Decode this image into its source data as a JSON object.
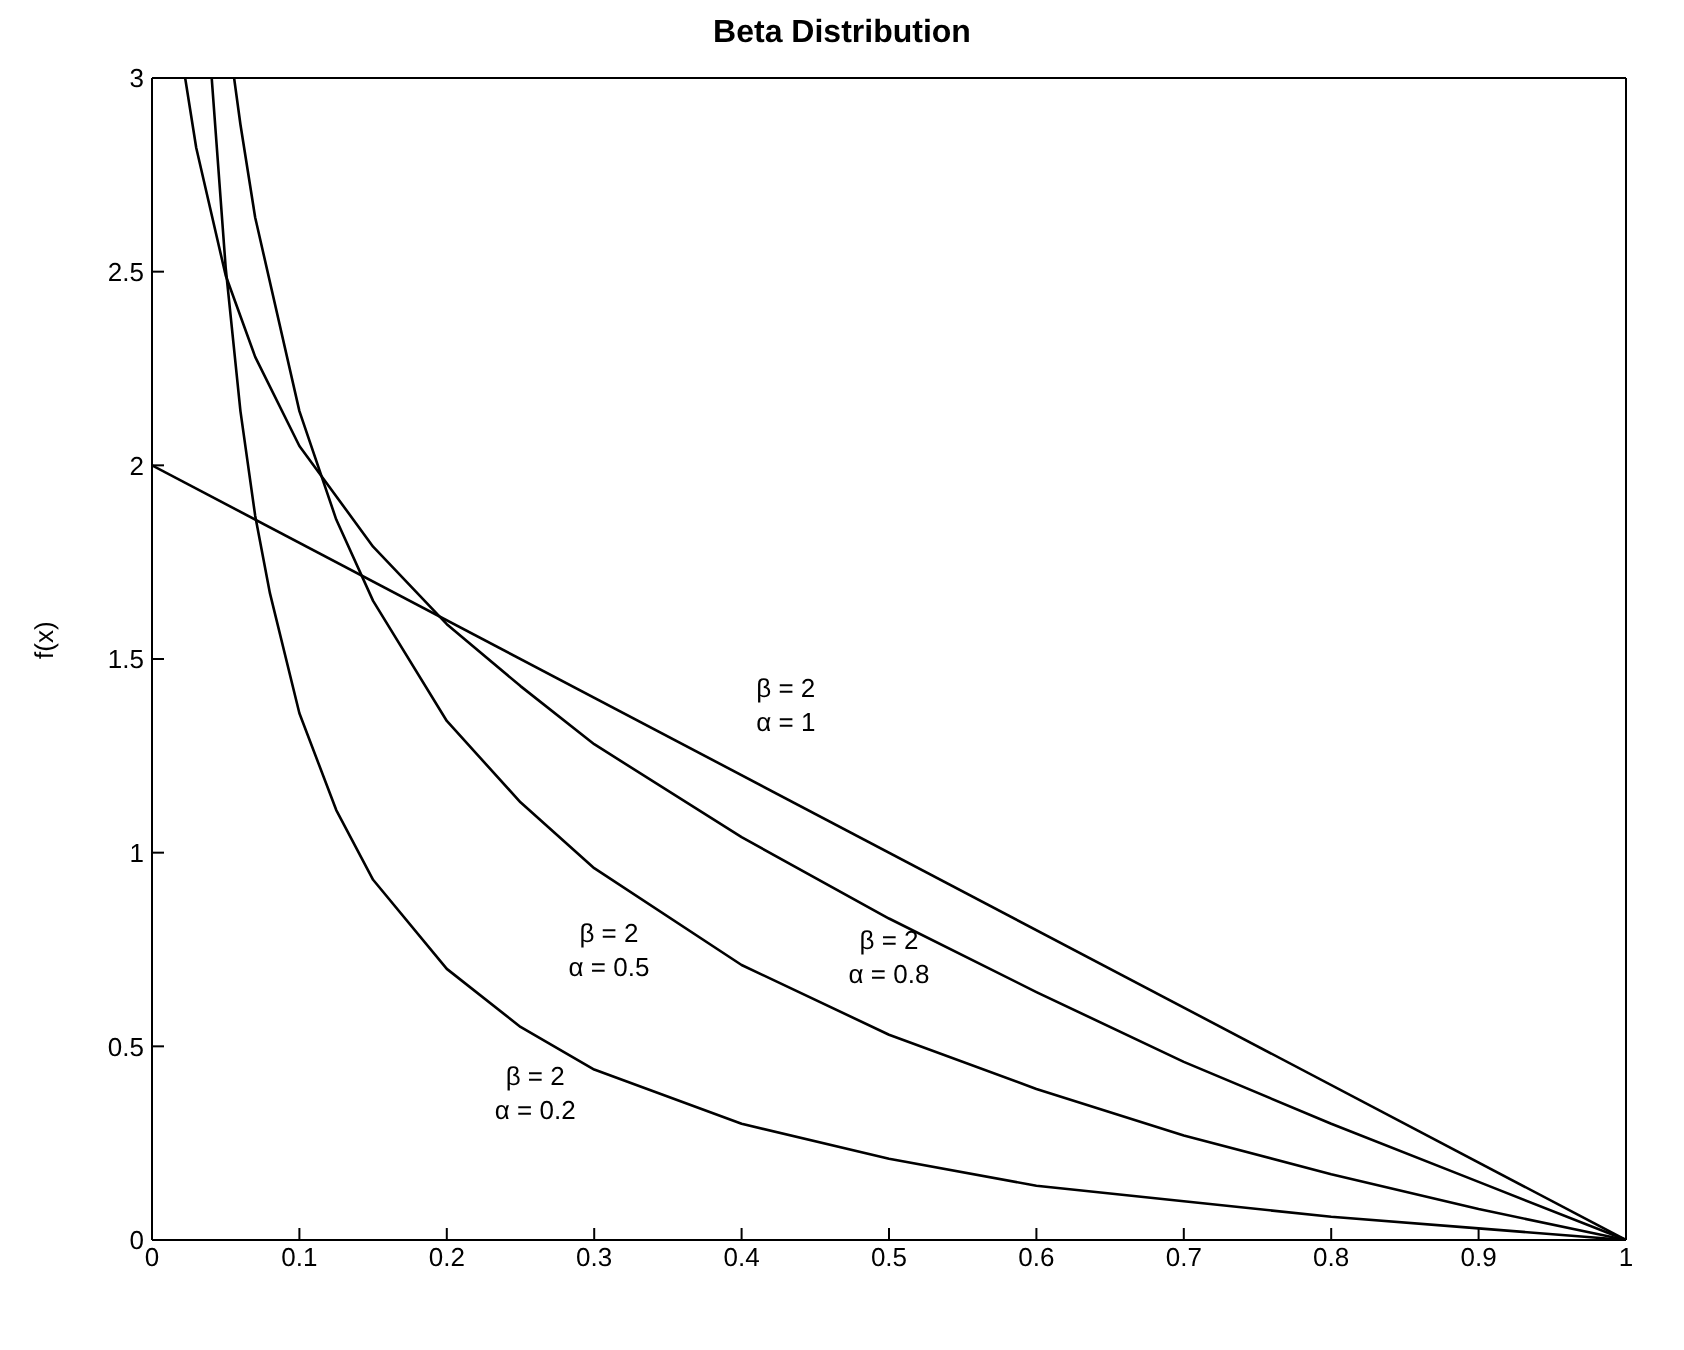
{
  "chart_data": {
    "type": "line",
    "title": "Beta Distribution",
    "ylabel": "f(x)",
    "xlim": [
      0,
      1
    ],
    "xticks": [
      0,
      0.1,
      0.2,
      0.3,
      0.4,
      0.5,
      0.6,
      0.7,
      0.8,
      0.9,
      1
    ],
    "ylim": [
      0,
      3
    ],
    "yticks": [
      0,
      0.5,
      1,
      1.5,
      2,
      2.5,
      3
    ],
    "grid": false,
    "legend": false,
    "marker": "none",
    "line_style": "solid",
    "series": [
      {
        "name": "β = 2\nα = 1",
        "color": "#000000",
        "x": [
          0,
          1
        ],
        "values": [
          2,
          0
        ]
      },
      {
        "name": "β = 2\nα = 0.8",
        "color": "#000000",
        "x": [
          0.0225,
          0.03,
          0.05,
          0.07,
          0.1,
          0.15,
          0.2,
          0.25,
          0.3,
          0.4,
          0.5,
          0.6,
          0.7,
          0.8,
          0.9,
          1
        ],
        "values": [
          3.0,
          2.82,
          2.49,
          2.28,
          2.05,
          1.79,
          1.59,
          1.43,
          1.28,
          1.04,
          0.83,
          0.64,
          0.46,
          0.3,
          0.15,
          0
        ]
      },
      {
        "name": "β = 2\nα = 0.5",
        "color": "#000000",
        "x": [
          0.0557,
          0.06,
          0.07,
          0.1,
          0.125,
          0.15,
          0.2,
          0.25,
          0.3,
          0.4,
          0.5,
          0.6,
          0.7,
          0.8,
          0.9,
          1
        ],
        "values": [
          3.0,
          2.88,
          2.64,
          2.14,
          1.86,
          1.65,
          1.34,
          1.13,
          0.96,
          0.71,
          0.53,
          0.39,
          0.27,
          0.17,
          0.08,
          0
        ]
      },
      {
        "name": "β = 2\nα = 0.2",
        "color": "#000000",
        "x": [
          0.0405,
          0.05,
          0.06,
          0.07,
          0.08,
          0.1,
          0.125,
          0.15,
          0.2,
          0.25,
          0.3,
          0.4,
          0.5,
          0.6,
          0.7,
          0.8,
          0.9,
          1
        ],
        "values": [
          3.0,
          2.51,
          2.14,
          1.87,
          1.67,
          1.36,
          1.11,
          0.93,
          0.7,
          0.55,
          0.44,
          0.3,
          0.21,
          0.14,
          0.1,
          0.06,
          0.03,
          0
        ]
      }
    ]
  }
}
